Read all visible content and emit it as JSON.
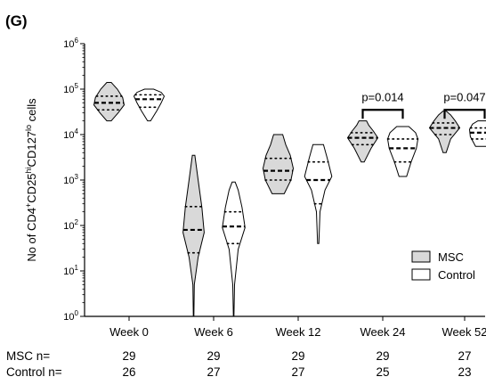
{
  "panel_label": "(G)",
  "chart_data": {
    "type": "violin",
    "ylabel": "No of CD4+CD25hiCD127lo cells",
    "ylabel_parts": [
      {
        "text": "No of CD4",
        "sup": false
      },
      {
        "text": "+",
        "sup": true
      },
      {
        "text": "CD25",
        "sup": false
      },
      {
        "text": "hi",
        "sup": true
      },
      {
        "text": "CD127",
        "sup": false
      },
      {
        "text": "lo",
        "sup": true
      },
      {
        "text": " cells",
        "sup": false
      }
    ],
    "yscale": "log",
    "ylim": [
      1,
      1000000
    ],
    "yticks": [
      {
        "base": "10",
        "exp": "0"
      },
      {
        "base": "10",
        "exp": "1"
      },
      {
        "base": "10",
        "exp": "2"
      },
      {
        "base": "10",
        "exp": "3"
      },
      {
        "base": "10",
        "exp": "4"
      },
      {
        "base": "10",
        "exp": "5"
      },
      {
        "base": "10",
        "exp": "6"
      }
    ],
    "categories": [
      "Week 0",
      "Week 6",
      "Week 12",
      "Week 24",
      "Week 52"
    ],
    "series": [
      {
        "name": "MSC",
        "color": "#d9d9d9",
        "violins": [
          {
            "min": 20000,
            "max": 140000,
            "q1": 35000,
            "median": 50000,
            "q3": 70000,
            "profile": [
              [
                20000,
                0.15
              ],
              [
                30000,
                0.6
              ],
              [
                45000,
                1.0
              ],
              [
                65000,
                0.9
              ],
              [
                100000,
                0.55
              ],
              [
                140000,
                0.15
              ]
            ]
          },
          {
            "min": 1,
            "max": 3500,
            "q1": 25,
            "median": 80,
            "q3": 260,
            "profile": [
              [
                1,
                0.02
              ],
              [
                5,
                0.05
              ],
              [
                20,
                0.3
              ],
              [
                70,
                0.7
              ],
              [
                250,
                0.55
              ],
              [
                1000,
                0.3
              ],
              [
                3500,
                0.08
              ]
            ]
          },
          {
            "min": 500,
            "max": 10000,
            "q1": 1000,
            "median": 1600,
            "q3": 3000,
            "profile": [
              [
                500,
                0.4
              ],
              [
                1000,
                0.85
              ],
              [
                1800,
                1.0
              ],
              [
                3500,
                0.8
              ],
              [
                6000,
                0.5
              ],
              [
                10000,
                0.3
              ]
            ]
          },
          {
            "min": 2500,
            "max": 20000,
            "q1": 6000,
            "median": 8500,
            "q3": 11000,
            "profile": [
              [
                2500,
                0.1
              ],
              [
                5000,
                0.55
              ],
              [
                8500,
                1.0
              ],
              [
                12000,
                0.7
              ],
              [
                16000,
                0.4
              ],
              [
                20000,
                0.25
              ]
            ]
          },
          {
            "min": 4000,
            "max": 33000,
            "q1": 10000,
            "median": 14000,
            "q3": 18000,
            "profile": [
              [
                4000,
                0.1
              ],
              [
                8000,
                0.4
              ],
              [
                14000,
                1.0
              ],
              [
                20000,
                0.7
              ],
              [
                27000,
                0.4
              ],
              [
                33000,
                0.1
              ]
            ]
          }
        ]
      },
      {
        "name": "Control",
        "color": "#ffffff",
        "violins": [
          {
            "min": 20000,
            "max": 100000,
            "q1": 40000,
            "median": 60000,
            "q3": 75000,
            "profile": [
              [
                20000,
                0.1
              ],
              [
                33000,
                0.5
              ],
              [
                50000,
                0.8
              ],
              [
                70000,
                1.0
              ],
              [
                85000,
                0.8
              ],
              [
                100000,
                0.3
              ]
            ]
          },
          {
            "min": 1,
            "max": 900,
            "q1": 40,
            "median": 95,
            "q3": 200,
            "profile": [
              [
                1,
                0.02
              ],
              [
                5,
                0.06
              ],
              [
                30,
                0.3
              ],
              [
                90,
                0.75
              ],
              [
                250,
                0.55
              ],
              [
                600,
                0.3
              ],
              [
                900,
                0.1
              ]
            ]
          },
          {
            "min": 40,
            "max": 6000,
            "q1": 300,
            "median": 1000,
            "q3": 2500,
            "profile": [
              [
                40,
                0.04
              ],
              [
                200,
                0.12
              ],
              [
                600,
                0.45
              ],
              [
                1200,
                0.9
              ],
              [
                3000,
                0.6
              ],
              [
                6000,
                0.35
              ]
            ]
          },
          {
            "min": 1200,
            "max": 15000,
            "q1": 2500,
            "median": 5000,
            "q3": 8000,
            "profile": [
              [
                1200,
                0.25
              ],
              [
                2500,
                0.55
              ],
              [
                5000,
                0.9
              ],
              [
                8000,
                1.0
              ],
              [
                11000,
                0.85
              ],
              [
                15000,
                0.4
              ]
            ]
          },
          {
            "min": 5500,
            "max": 20000,
            "q1": 8000,
            "median": 11000,
            "q3": 14000,
            "profile": [
              [
                5500,
                0.6
              ],
              [
                9000,
                0.95
              ],
              [
                13000,
                1.0
              ],
              [
                17000,
                0.8
              ],
              [
                20000,
                0.45
              ]
            ]
          }
        ]
      }
    ],
    "annotations": [
      {
        "category": "Week 24",
        "text": "p=0.014",
        "bracket_y": 35000
      },
      {
        "category": "Week 52",
        "text": "p=0.047",
        "bracket_y": 35000
      }
    ],
    "legend": {
      "position": "bottom-right",
      "entries": [
        {
          "label": "MSC",
          "color": "#d9d9d9"
        },
        {
          "label": "Control",
          "color": "#ffffff"
        }
      ]
    },
    "counts": [
      {
        "label": "MSC n=",
        "values": [
          "29",
          "29",
          "29",
          "29",
          "27"
        ]
      },
      {
        "label": "Control n=",
        "values": [
          "26",
          "27",
          "27",
          "25",
          "23"
        ]
      }
    ]
  }
}
